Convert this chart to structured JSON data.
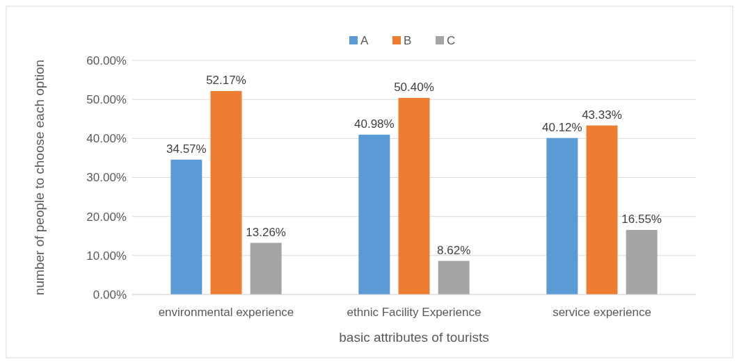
{
  "chart_data": {
    "type": "bar",
    "xlabel": "basic attributes of tourists",
    "ylabel": "number of people to choose each option",
    "categories": [
      "environmental experience",
      "ethnic Facility Experience",
      "service experience"
    ],
    "series": [
      {
        "name": "A",
        "color": "#5b9bd5",
        "values": [
          34.57,
          40.98,
          40.12
        ],
        "value_labels": [
          "34.57%",
          "40.98%",
          "40.12%"
        ]
      },
      {
        "name": "B",
        "color": "#ed7d31",
        "values": [
          52.17,
          50.4,
          43.33
        ],
        "value_labels": [
          "52.17%",
          "50.40%",
          "43.33%"
        ]
      },
      {
        "name": "C",
        "color": "#a5a5a5",
        "values": [
          13.26,
          8.62,
          16.55
        ],
        "value_labels": [
          "13.26%",
          "8.62%",
          "16.55%"
        ]
      }
    ],
    "ylim": [
      0,
      60
    ],
    "yticks": [
      {
        "value": 0,
        "label": "0.00%"
      },
      {
        "value": 10,
        "label": "10.00%"
      },
      {
        "value": 20,
        "label": "20.00%"
      },
      {
        "value": 30,
        "label": "30.00%"
      },
      {
        "value": 40,
        "label": "40.00%"
      },
      {
        "value": 50,
        "label": "50.00%"
      },
      {
        "value": 60,
        "label": "60.00%"
      }
    ],
    "grid": "y",
    "legend": "top"
  }
}
